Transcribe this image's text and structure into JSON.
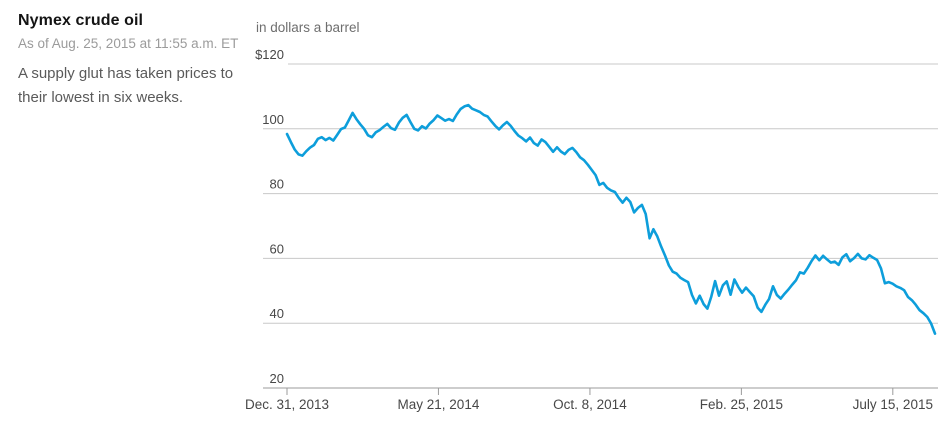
{
  "header": {
    "title": "Nymex crude oil",
    "as_of": "As of Aug. 25, 2015 at 11:55 a.m. ET",
    "description": "A supply glut has taken prices to their lowest in six weeks.",
    "unit_label": "in dollars a barrel"
  },
  "colors": {
    "line": "#0d9edb",
    "grid": "#c8c8c8",
    "axis": "#9b9b9b",
    "tick_text": "#474747",
    "title_text": "#141414",
    "muted_text": "#9b9b9b"
  },
  "chart_data": {
    "type": "line",
    "title": "Nymex crude oil",
    "subtitle": "As of Aug. 25, 2015 at 11:55 a.m. ET",
    "annotation": "A supply glut has taken prices to their lowest in six weeks.",
    "ylabel": "in dollars a barrel",
    "ylim": [
      20,
      120
    ],
    "grid": true,
    "y_ticks": [
      {
        "label": "$120",
        "value": 120
      },
      {
        "label": "100",
        "value": 100
      },
      {
        "label": "80",
        "value": 80
      },
      {
        "label": "60",
        "value": 60
      },
      {
        "label": "40",
        "value": 40
      },
      {
        "label": "20",
        "value": 20
      }
    ],
    "x_ticks": [
      {
        "label": "Dec. 31, 2013",
        "pos": 0.0
      },
      {
        "label": "May 21, 2014",
        "pos": 0.2337
      },
      {
        "label": "Oct. 8, 2014",
        "pos": 0.4675
      },
      {
        "label": "Feb. 25, 2015",
        "pos": 0.7012
      },
      {
        "label": "July 15, 2015",
        "pos": 0.9349
      }
    ],
    "x_range": [
      "Dec. 31, 2013",
      "Aug. 25, 2015"
    ],
    "series": [
      {
        "name": "Nymex crude oil price, dollars a barrel",
        "values": [
          98.4,
          95.9,
          93.6,
          92.1,
          91.7,
          93.1,
          94.2,
          95.0,
          96.9,
          97.4,
          96.5,
          97.2,
          96.4,
          98.1,
          99.9,
          100.4,
          102.6,
          104.9,
          103.0,
          101.4,
          100.0,
          98.0,
          97.4,
          98.9,
          99.6,
          100.6,
          101.5,
          100.2,
          99.7,
          101.9,
          103.4,
          104.3,
          102.1,
          100.0,
          99.5,
          100.8,
          100.1,
          101.6,
          102.7,
          104.1,
          103.3,
          102.5,
          103.0,
          102.4,
          104.4,
          106.1,
          106.9,
          107.3,
          106.2,
          105.7,
          105.2,
          104.3,
          103.8,
          102.3,
          100.9,
          99.8,
          101.1,
          102.1,
          100.9,
          99.3,
          97.9,
          97.1,
          96.1,
          97.3,
          95.6,
          94.8,
          96.7,
          95.9,
          94.4,
          92.9,
          94.3,
          93.0,
          92.2,
          93.5,
          94.1,
          92.8,
          91.2,
          90.3,
          88.9,
          87.3,
          85.7,
          82.7,
          83.3,
          81.8,
          81.0,
          80.5,
          78.7,
          77.2,
          78.7,
          77.4,
          74.2,
          75.6,
          76.5,
          73.7,
          66.2,
          69.0,
          66.8,
          63.7,
          60.9,
          57.8,
          55.9,
          55.3,
          54.0,
          53.3,
          52.7,
          48.7,
          46.1,
          48.5,
          45.9,
          44.5,
          48.2,
          53.0,
          48.5,
          51.7,
          52.9,
          48.8,
          53.5,
          51.2,
          49.4,
          51.0,
          49.6,
          48.3,
          44.8,
          43.5,
          45.7,
          47.5,
          51.4,
          48.7,
          47.6,
          49.1,
          50.4,
          51.9,
          53.3,
          55.7,
          55.3,
          57.1,
          59.2,
          60.9,
          59.4,
          60.8,
          59.7,
          58.7,
          59.0,
          58.0,
          60.3,
          61.3,
          59.1,
          60.1,
          61.4,
          60.0,
          59.7,
          61.0,
          60.2,
          59.5,
          56.9,
          52.3,
          52.7,
          52.2,
          51.4,
          50.9,
          50.2,
          48.1,
          47.1,
          45.7,
          44.0,
          43.1,
          41.9,
          39.9,
          36.8
        ]
      }
    ]
  }
}
